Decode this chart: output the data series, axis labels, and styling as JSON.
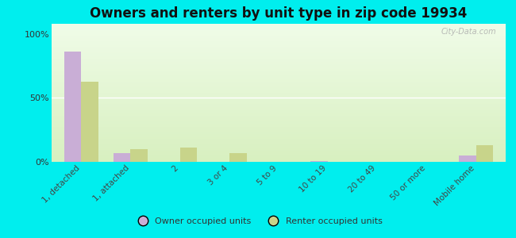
{
  "title": "Owners and renters by unit type in zip code 19934",
  "categories": [
    "1, detached",
    "1, attached",
    "2",
    "3 or 4",
    "5 to 9",
    "10 to 19",
    "20 to 49",
    "50 or more",
    "Mobile home"
  ],
  "owner_values": [
    86,
    7,
    0,
    0,
    0,
    0.5,
    0,
    0,
    5
  ],
  "renter_values": [
    63,
    10,
    11,
    7,
    0,
    0,
    0,
    0,
    13
  ],
  "owner_color": "#c9aed6",
  "renter_color": "#c8d48a",
  "background_color": "#00eeee",
  "ylabel_ticks": [
    "0%",
    "50%",
    "100%"
  ],
  "yticks": [
    0,
    50,
    100
  ],
  "ylim": [
    0,
    108
  ],
  "watermark": "City-Data.com",
  "legend_owner": "Owner occupied units",
  "legend_renter": "Renter occupied units",
  "title_fontsize": 12,
  "bar_width": 0.35
}
